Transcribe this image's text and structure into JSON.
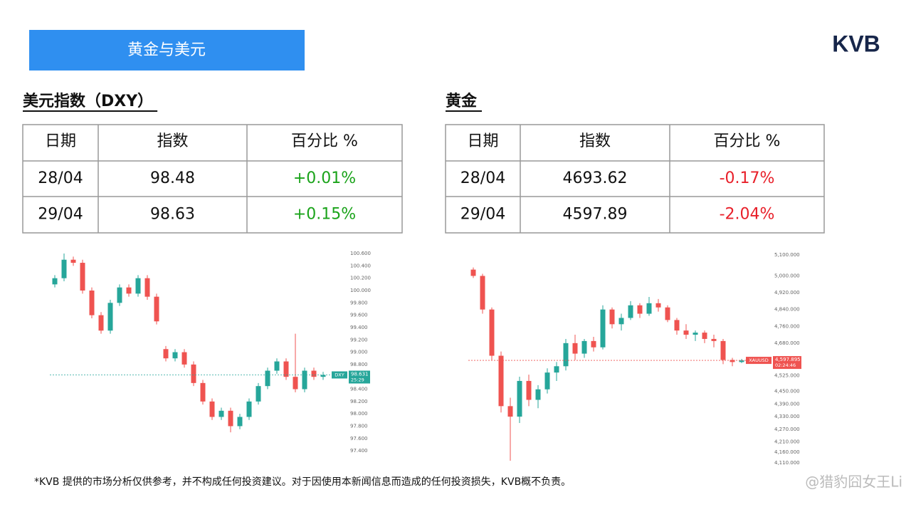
{
  "header": {
    "title": "黄金与美元"
  },
  "logo": "KVB",
  "tables": [
    {
      "title": "美元指数（DXY）",
      "columns": [
        "日期",
        "指数",
        "百分比 %"
      ],
      "rows": [
        [
          "28/04",
          "98.48",
          "+0.01%"
        ],
        [
          "29/04",
          "98.63",
          "+0.15%"
        ]
      ],
      "change_color": "#1aa31a"
    },
    {
      "title": "黄金",
      "columns": [
        "日期",
        "指数",
        "百分比 %"
      ],
      "rows": [
        [
          "28/04",
          "4693.62",
          "-0.17%"
        ],
        [
          "29/04",
          "4597.89",
          "-2.04%"
        ]
      ],
      "change_color": "#e8202a"
    }
  ],
  "chart_data": [
    {
      "type": "candlestick",
      "symbol": "DXY",
      "countdown": "25:29",
      "last_price": 98.631,
      "ylim": [
        97.32,
        100.67
      ],
      "yticks": [
        {
          "value": 100.6,
          "label": "100.600"
        },
        {
          "value": 100.4,
          "label": "100.400"
        },
        {
          "value": 100.2,
          "label": "100.200"
        },
        {
          "value": 100,
          "label": "100.000"
        },
        {
          "value": 99.8,
          "label": "99.800"
        },
        {
          "value": 99.6,
          "label": "99.600"
        },
        {
          "value": 99.4,
          "label": "99.400"
        },
        {
          "value": 99.2,
          "label": "99.200"
        },
        {
          "value": 99,
          "label": "99.000"
        },
        {
          "value": 98.8,
          "label": "98.800"
        },
        {
          "value": 98.4,
          "label": "98.400"
        },
        {
          "value": 98.2,
          "label": "98.200"
        },
        {
          "value": 98,
          "label": "98.000"
        },
        {
          "value": 97.8,
          "label": "97.800"
        },
        {
          "value": 97.6,
          "label": "97.600"
        },
        {
          "value": 97.4,
          "label": "97.400"
        }
      ],
      "up_color": "#26a69a",
      "down_color": "#ef5350",
      "ohlc": [
        [
          100.1,
          100.25,
          100.05,
          100.2
        ],
        [
          100.2,
          100.6,
          100.15,
          100.5
        ],
        [
          100.5,
          100.55,
          100.4,
          100.45
        ],
        [
          100.45,
          100.5,
          99.95,
          100
        ],
        [
          100,
          100.05,
          99.55,
          99.6
        ],
        [
          99.6,
          99.65,
          99.3,
          99.35
        ],
        [
          99.35,
          99.85,
          99.3,
          99.8
        ],
        [
          99.8,
          100.1,
          99.75,
          100.05
        ],
        [
          100.05,
          100.1,
          99.9,
          99.95
        ],
        [
          99.95,
          100.25,
          99.9,
          100.2
        ],
        [
          100.2,
          100.25,
          99.85,
          99.9
        ],
        [
          99.9,
          99.95,
          99.45,
          99.5
        ],
        [
          99.05,
          99.1,
          98.85,
          98.9
        ],
        [
          98.9,
          99.05,
          98.85,
          99
        ],
        [
          99,
          99.05,
          98.75,
          98.8
        ],
        [
          98.8,
          98.85,
          98.45,
          98.5
        ],
        [
          98.5,
          98.55,
          98.15,
          98.2
        ],
        [
          98.2,
          98.25,
          97.9,
          97.95
        ],
        [
          97.95,
          98.1,
          97.9,
          98.05
        ],
        [
          98.05,
          98.1,
          97.7,
          97.8
        ],
        [
          97.8,
          98,
          97.75,
          97.95
        ],
        [
          97.95,
          98.25,
          97.9,
          98.2
        ],
        [
          98.2,
          98.5,
          98.15,
          98.45
        ],
        [
          98.45,
          98.75,
          98.4,
          98.7
        ],
        [
          98.7,
          98.9,
          98.65,
          98.85
        ],
        [
          98.85,
          98.9,
          98.55,
          98.6
        ],
        [
          98.6,
          99.3,
          98.35,
          98.4
        ],
        [
          98.4,
          98.75,
          98.35,
          98.7
        ],
        [
          98.7,
          98.75,
          98.55,
          98.6
        ],
        [
          98.6,
          98.68,
          98.55,
          98.63
        ]
      ]
    },
    {
      "type": "candlestick",
      "symbol": "XAUUSD",
      "countdown": "02:24:46",
      "last_price": {
        "value": 4597.895,
        "label": "4,597.895"
      },
      "ylim": [
        4093,
        5127
      ],
      "yticks": [
        {
          "value": 5100,
          "label": "5,100.000"
        },
        {
          "value": 5000,
          "label": "5,000.000"
        },
        {
          "value": 4920,
          "label": "4,920.000"
        },
        {
          "value": 4840,
          "label": "4,840.000"
        },
        {
          "value": 4760,
          "label": "4,760.000"
        },
        {
          "value": 4680,
          "label": "4,680.000"
        },
        {
          "value": 4525,
          "label": "4,525.000"
        },
        {
          "value": 4450,
          "label": "4,450.000"
        },
        {
          "value": 4390,
          "label": "4,390.000"
        },
        {
          "value": 4330,
          "label": "4,330.000"
        },
        {
          "value": 4270,
          "label": "4,270.000"
        },
        {
          "value": 4210,
          "label": "4,210.000"
        },
        {
          "value": 4160,
          "label": "4,160.000"
        },
        {
          "value": 4110,
          "label": "4,110.000"
        }
      ],
      "up_color": "#26a69a",
      "down_color": "#ef5350",
      "ohlc": [
        [
          5030,
          5040,
          4990,
          5000
        ],
        [
          5000,
          5010,
          4820,
          4840
        ],
        [
          4840,
          4850,
          4600,
          4620
        ],
        [
          4620,
          4640,
          4350,
          4380
        ],
        [
          4380,
          4420,
          4120,
          4330
        ],
        [
          4330,
          4520,
          4300,
          4500
        ],
        [
          4500,
          4530,
          4380,
          4410
        ],
        [
          4410,
          4480,
          4370,
          4460
        ],
        [
          4460,
          4560,
          4440,
          4540
        ],
        [
          4540,
          4590,
          4500,
          4570
        ],
        [
          4570,
          4700,
          4550,
          4680
        ],
        [
          4680,
          4720,
          4600,
          4630
        ],
        [
          4630,
          4700,
          4610,
          4690
        ],
        [
          4690,
          4710,
          4640,
          4660
        ],
        [
          4660,
          4860,
          4650,
          4840
        ],
        [
          4840,
          4850,
          4750,
          4770
        ],
        [
          4770,
          4820,
          4740,
          4800
        ],
        [
          4800,
          4880,
          4790,
          4860
        ],
        [
          4860,
          4870,
          4800,
          4820
        ],
        [
          4820,
          4900,
          4810,
          4870
        ],
        [
          4870,
          4890,
          4830,
          4850
        ],
        [
          4850,
          4860,
          4780,
          4790
        ],
        [
          4790,
          4800,
          4720,
          4740
        ],
        [
          4740,
          4770,
          4700,
          4720
        ],
        [
          4720,
          4740,
          4690,
          4730
        ],
        [
          4730,
          4740,
          4680,
          4700
        ],
        [
          4700,
          4720,
          4660,
          4690
        ],
        [
          4690,
          4700,
          4580,
          4600
        ],
        [
          4600,
          4610,
          4570,
          4590
        ],
        [
          4590,
          4605,
          4585,
          4598
        ]
      ]
    }
  ],
  "footnote": "*KVB 提供的市场分析仅供参考，并不构成任何投资建议。对于因使用本新闻信息而造成的任何投资损失，KVB概不负责。",
  "watermark": "@猎豹囧女王Li"
}
